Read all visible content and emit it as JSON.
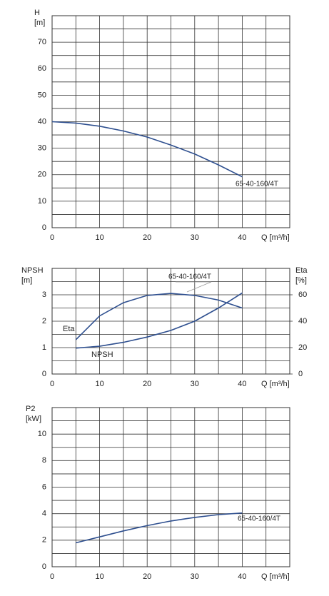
{
  "chart_data": [
    {
      "type": "line",
      "ylabel": [
        "H",
        "[m]"
      ],
      "xlabel": "Q [m³/h]",
      "x": [
        0,
        5,
        10,
        15,
        20,
        25,
        30,
        35,
        40
      ],
      "series": [
        {
          "name": "65-40-160/4T",
          "color": "#2e4f8f",
          "values": [
            40,
            39.5,
            38.3,
            36.5,
            34.2,
            31.2,
            27.8,
            23.7,
            19.2
          ]
        }
      ],
      "xlim": [
        0,
        50
      ],
      "xticks": [
        0,
        10,
        20,
        30,
        40
      ],
      "xminor": [
        5,
        15,
        25,
        35,
        45
      ],
      "ylim": [
        0,
        80
      ],
      "yticks": [
        0,
        10,
        20,
        30,
        40,
        50,
        60,
        70
      ],
      "yminor": [
        5,
        15,
        25,
        35,
        45,
        55,
        65,
        75
      ],
      "grid": true
    },
    {
      "type": "line",
      "ylabel": [
        "NPSH",
        "[m]"
      ],
      "y2label": [
        "Eta",
        "[%]"
      ],
      "xlabel": "Q [m³/h]",
      "annotation": "65-40-160/4T",
      "x": [
        5,
        10,
        15,
        20,
        25,
        30,
        35,
        40
      ],
      "series": [
        {
          "name": "Eta",
          "color": "#2e4f8f",
          "axis": "y2",
          "values": [
            26,
            44,
            54,
            59.5,
            61,
            59.5,
            56,
            50
          ]
        },
        {
          "name": "NPSH",
          "color": "#2e4f8f",
          "values": [
            0.98,
            1.05,
            1.2,
            1.4,
            1.65,
            2.0,
            2.5,
            3.07
          ]
        }
      ],
      "xlim": [
        0,
        50
      ],
      "xticks": [
        0,
        10,
        20,
        30,
        40
      ],
      "xminor": [
        5,
        15,
        25,
        35,
        45
      ],
      "ylim": [
        0,
        4
      ],
      "yticks": [
        0,
        1,
        2,
        3
      ],
      "yminor": [
        0.5,
        1.5,
        2.5,
        3.5
      ],
      "y2lim": [
        0,
        80
      ],
      "y2ticks": [
        0,
        20,
        40,
        60
      ],
      "grid": true
    },
    {
      "type": "line",
      "ylabel": [
        "P2",
        "[kW]"
      ],
      "xlabel": "Q [m³/h]",
      "x": [
        5,
        10,
        15,
        20,
        25,
        30,
        35,
        40
      ],
      "series": [
        {
          "name": "65-40-160/4T",
          "color": "#2e4f8f",
          "values": [
            1.8,
            2.25,
            2.7,
            3.1,
            3.45,
            3.72,
            3.93,
            4.05
          ]
        }
      ],
      "xlim": [
        0,
        50
      ],
      "xticks": [
        0,
        10,
        20,
        30,
        40
      ],
      "xminor": [
        5,
        15,
        25,
        35,
        45
      ],
      "ylim": [
        0,
        12
      ],
      "yticks": [
        0,
        2,
        4,
        6,
        8,
        10
      ],
      "yminor": [
        1,
        3,
        5,
        7,
        9,
        11
      ],
      "grid": true
    }
  ]
}
